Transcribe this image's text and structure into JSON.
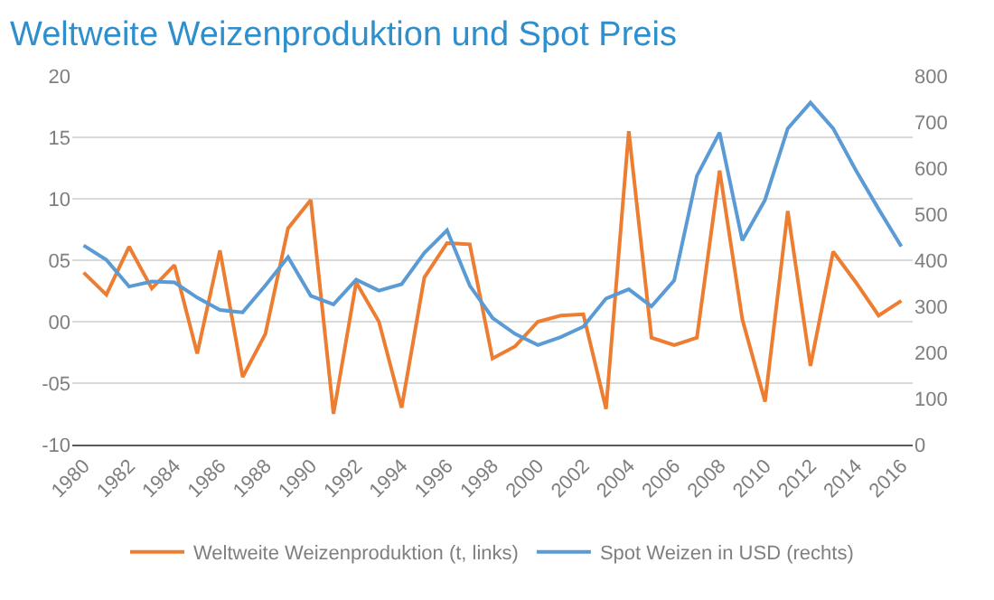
{
  "chart_data": {
    "type": "line",
    "title": "Weltweite Weizenproduktion und Spot Preis",
    "x": [
      1980,
      1981,
      1982,
      1983,
      1984,
      1985,
      1986,
      1987,
      1988,
      1989,
      1990,
      1991,
      1992,
      1993,
      1994,
      1995,
      1996,
      1997,
      1998,
      1999,
      2000,
      2001,
      2002,
      2003,
      2004,
      2005,
      2006,
      2007,
      2008,
      2009,
      2010,
      2011,
      2012,
      2013,
      2014,
      2015,
      2016
    ],
    "series": [
      {
        "name": "Weltweite Weizenproduktion (t, links)",
        "color": "#ed7d31",
        "values": [
          4.0,
          2.2,
          6.1,
          2.7,
          4.6,
          -2.6,
          5.8,
          -4.5,
          -1.0,
          7.6,
          9.9,
          -7.5,
          3.2,
          0.0,
          -7.0,
          3.6,
          6.4,
          6.3,
          -3.0,
          -2.0,
          0.0,
          0.5,
          0.6,
          -7.1,
          15.5,
          -1.3,
          -1.9,
          -1.3,
          12.3,
          0.2,
          -6.5,
          9.0,
          -3.6,
          5.7,
          3.2,
          0.5,
          1.7
        ]
      },
      {
        "name": "Spot Weizen in USD (rechts)",
        "color": "#5b9bd5",
        "axis": "y2",
        "values": [
          432,
          401,
          343,
          354,
          352,
          319,
          292,
          287,
          345,
          407,
          323,
          304,
          358,
          334,
          348,
          416,
          465,
          345,
          275,
          240,
          216,
          233,
          256,
          317,
          337,
          300,
          356,
          583,
          677,
          443,
          531,
          686,
          742,
          686,
          595,
          511,
          430
        ]
      }
    ],
    "xlim": [
      1979.5,
      2016.5
    ],
    "xticks": [
      1980,
      1982,
      1984,
      1986,
      1988,
      1990,
      1992,
      1994,
      1996,
      1998,
      2000,
      2002,
      2004,
      2006,
      2008,
      2010,
      2012,
      2014,
      2016
    ],
    "ylim": [
      -10,
      20
    ],
    "yticks": [
      {
        "value": -10,
        "label": "-10"
      },
      {
        "value": -5,
        "label": "-05"
      },
      {
        "value": 0,
        "label": "00"
      },
      {
        "value": 5,
        "label": "05"
      },
      {
        "value": 10,
        "label": "10"
      },
      {
        "value": 15,
        "label": "15"
      },
      {
        "value": 20,
        "label": "20"
      }
    ],
    "y2lim": [
      0,
      800
    ],
    "y2ticks": [
      0,
      100,
      200,
      300,
      400,
      500,
      600,
      700,
      800
    ],
    "grid": "y",
    "legend": "bottom",
    "marker": "none",
    "line_style": "solid"
  }
}
